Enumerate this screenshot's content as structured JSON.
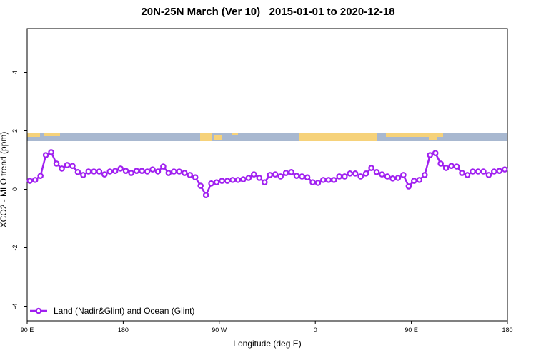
{
  "chart_data": {
    "type": "line",
    "title": "20N-25N March (Ver 10)   2015-01-01 to 2020-12-18",
    "x_label": "Longitude (deg E)",
    "y_label": "XCO2 - MLO trend (ppm)",
    "xlim": [
      90,
      540
    ],
    "ylim": [
      -4.5,
      5.5
    ],
    "xticks": [
      {
        "value": 90,
        "label": "90 E"
      },
      180,
      {
        "value": 270,
        "label": "90 W"
      },
      {
        "value": 360,
        "label": "0"
      },
      {
        "value": 450,
        "label": "90 E"
      },
      {
        "value": 540,
        "label": "180"
      }
    ],
    "yticks": [
      -4,
      -2,
      0,
      2,
      4
    ],
    "legend": "bottom-left",
    "x": [
      92.5,
      97.5,
      102.5,
      107.5,
      112.5,
      117.5,
      122.5,
      127.5,
      132.5,
      137.5,
      142.5,
      147.5,
      152.5,
      157.5,
      162.5,
      167.5,
      172.5,
      177.5,
      182.5,
      187.5,
      192.5,
      197.5,
      202.5,
      207.5,
      212.5,
      217.5,
      222.5,
      227.5,
      232.5,
      237.5,
      242.5,
      247.5,
      252.5,
      257.5,
      262.5,
      267.5,
      272.5,
      277.5,
      282.5,
      287.5,
      292.5,
      297.5,
      302.5,
      307.5,
      312.5,
      317.5,
      322.5,
      327.5,
      332.5,
      337.5,
      342.5,
      347.5,
      352.5,
      357.5,
      362.5,
      367.5,
      372.5,
      377.5,
      382.5,
      387.5,
      392.5,
      397.5,
      402.5,
      407.5,
      412.5,
      417.5,
      422.5,
      427.5,
      432.5,
      437.5,
      442.5,
      447.5,
      452.5,
      457.5,
      462.5,
      467.5,
      472.5,
      477.5,
      482.5,
      487.5,
      492.5,
      497.5,
      502.5,
      507.5,
      512.5,
      517.5,
      522.5,
      527.5,
      532.5,
      537.5
    ],
    "series": [
      {
        "name": "Land (Nadir&Glint) and Ocean (Glint)",
        "color": "#a020f0",
        "values": [
          0.29,
          0.32,
          0.46,
          1.17,
          1.27,
          0.88,
          0.71,
          0.83,
          0.8,
          0.59,
          0.49,
          0.61,
          0.61,
          0.61,
          0.51,
          0.61,
          0.63,
          0.71,
          0.63,
          0.56,
          0.63,
          0.63,
          0.61,
          0.68,
          0.61,
          0.78,
          0.56,
          0.61,
          0.61,
          0.56,
          0.49,
          0.41,
          0.12,
          -0.2,
          0.2,
          0.24,
          0.29,
          0.29,
          0.32,
          0.32,
          0.34,
          0.39,
          0.51,
          0.39,
          0.24,
          0.49,
          0.51,
          0.44,
          0.56,
          0.59,
          0.46,
          0.44,
          0.41,
          0.24,
          0.22,
          0.32,
          0.32,
          0.32,
          0.44,
          0.44,
          0.54,
          0.54,
          0.44,
          0.54,
          0.73,
          0.59,
          0.51,
          0.44,
          0.37,
          0.39,
          0.49,
          0.1,
          0.29,
          0.32,
          0.49,
          1.17,
          1.24,
          0.88,
          0.73,
          0.8,
          0.78,
          0.56,
          0.49,
          0.61,
          0.61,
          0.61,
          0.49,
          0.61,
          0.63,
          0.68
        ]
      }
    ]
  }
}
